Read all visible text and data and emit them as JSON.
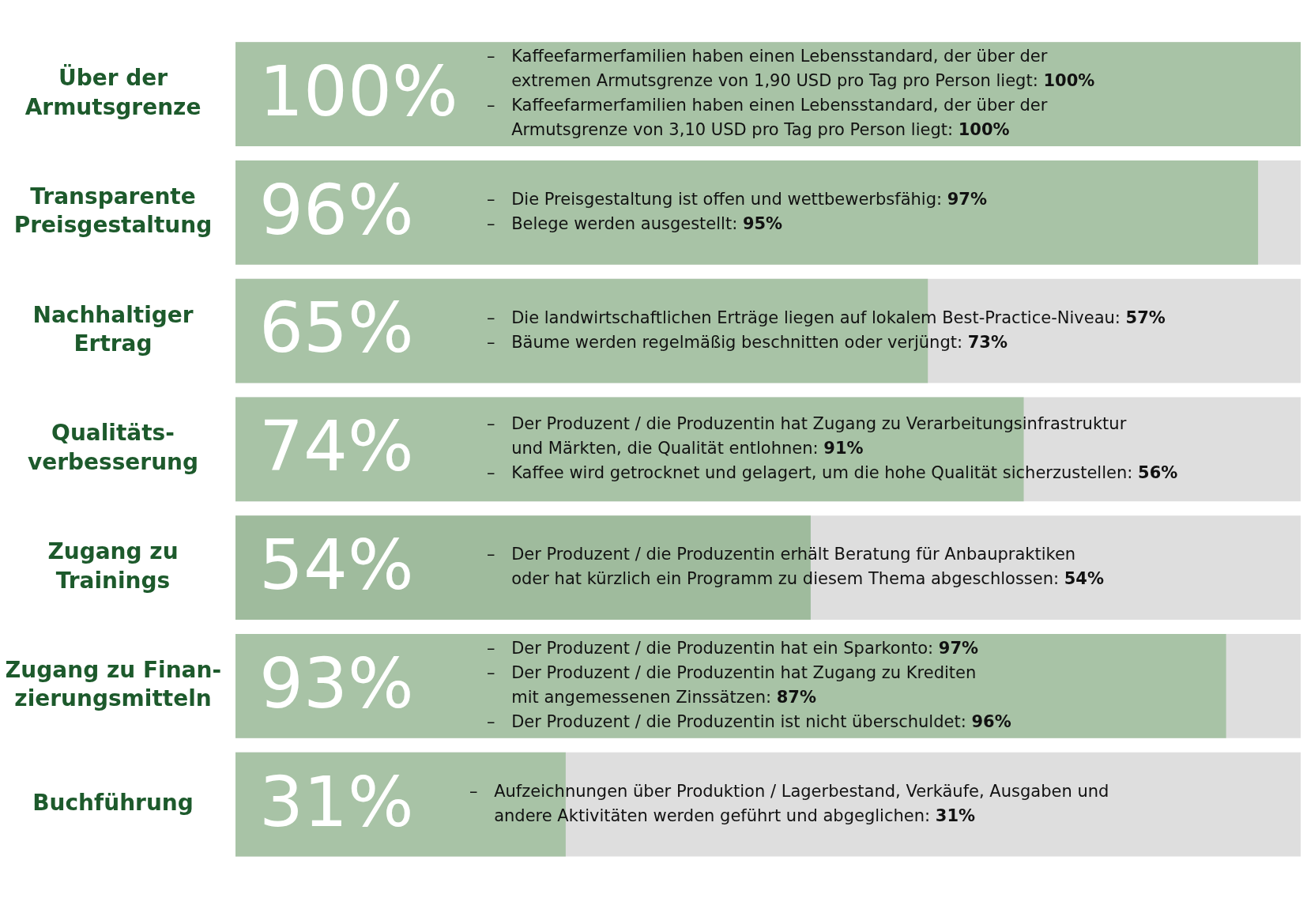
{
  "chart_data": {
    "type": "bar",
    "orientation": "horizontal",
    "categories": [
      "Über der\nArmutsgrenze",
      "Transparente\nPreisgestaltung",
      "Nachhaltiger\nErtrag",
      "Qualitäts-\nverbesserung",
      "Zugang zu\nTrainings",
      "Zugang zu Finan-\nzierungsmitteln",
      "Buchführung"
    ],
    "values": [
      100,
      96,
      65,
      74,
      54,
      93,
      31
    ],
    "colors": [
      "#a8c3a6",
      "#a8c3a6",
      "#a8c3a6",
      "#a8c3a6",
      "#9fbb9d",
      "#a8c3a6",
      "#a8c3a6"
    ],
    "value_labels": [
      "100%",
      "96%",
      "65%",
      "74%",
      "54%",
      "93%",
      "31%"
    ],
    "xlim": [
      0,
      100
    ],
    "tick_labels": "y",
    "grid": false,
    "legend": false,
    "annotations": [
      "– Kaffeefarmerfamilien haben einen Lebensstandard, der über der\nextremen Armutsgrenze von 1,90 USD pro Tag pro Person liegt: 100%\n– Kaffeefarmerfamilien haben einen Lebensstandard, der über der\nArmutsgrenze von 3,10 USD pro Tag pro Person liegt: 100%",
      "– Die Preisgestaltung ist offen und wettbewerbsfähig: 97%\n– Belege werden ausgestellt: 95%",
      "– Die landwirtschaftlichen Erträge liegen auf lokalem Best-Practice-Niveau: 57%\n– Bäume werden regelmäßig beschnitten oder verjüngt: 73%",
      "– Der Produzent / die Produzentin hat Zugang zu Verarbeitungsinfrastruktur\nund Märkten, die Qualität entlohnen: 91%\n– Kaffee wird getrocknet und gelagert, um die hohe Qualität sicherzustellen: 56%",
      "– Der Produzent / die Produzentin erhält Beratung für Anbaupraktiken\noder hat kürzlich ein Programm zu diesem Thema abgeschlossen: 54%",
      "– Der Produzent / die Produzentin hat ein Sparkonto: 97%\n– Der Produzent / die Produzentin hat Zugang zu Krediten\nmit angemessenen Zinssätzen: 87%\n– Der Produzent / die Produzentin ist nicht überschuldet: 96%",
      "– Aufzeichnungen über Produktion / Lagerbestand, Verkäufe, Ausgaben und\nandere Aktivitäten werden geführt und abgeglichen: 31%"
    ]
  }
}
